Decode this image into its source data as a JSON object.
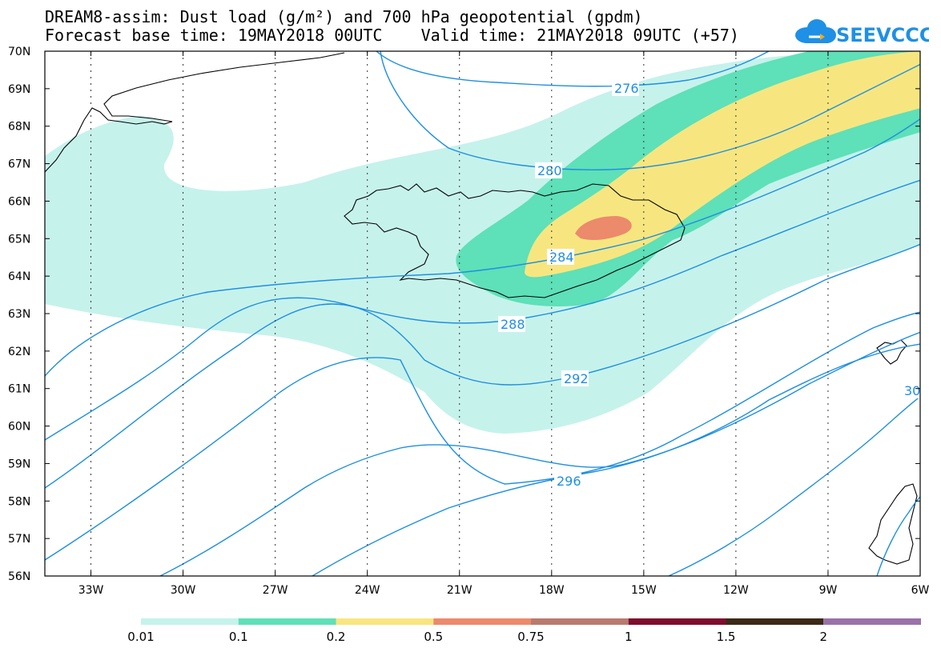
{
  "header": {
    "line1": "DREAM8-assim: Dust load (g/m²) and 700 hPa geopotential (gpdm)",
    "line2": "Forecast base time: 19MAY2018 00UTC    Valid time: 21MAY2018 09UTC (+57)"
  },
  "logo": {
    "text": "SEEVCCC",
    "icon": "cloud-icon",
    "color": "#1e90e6"
  },
  "axes": {
    "lat_labels": [
      "70N",
      "69N",
      "68N",
      "67N",
      "66N",
      "65N",
      "64N",
      "63N",
      "62N",
      "61N",
      "60N",
      "59N",
      "58N",
      "57N",
      "56N"
    ],
    "lon_labels": [
      "33W",
      "30W",
      "27W",
      "24W",
      "21W",
      "18W",
      "15W",
      "12W",
      "9W",
      "6W"
    ]
  },
  "contours": {
    "color": "#1e8fe0",
    "labels": [
      "276",
      "280",
      "284",
      "288",
      "292",
      "296",
      "30"
    ]
  },
  "colorbar": {
    "colors": [
      "#c6f2ec",
      "#5ee0b8",
      "#f7e680",
      "#ec8a6c",
      "#b97a6e",
      "#7d0d2e",
      "#3c2a16",
      "#9972a8"
    ],
    "labels": [
      "0.01",
      "0.1",
      "0.2",
      "0.5",
      "0.75",
      "1",
      "1.5",
      "2"
    ]
  }
}
